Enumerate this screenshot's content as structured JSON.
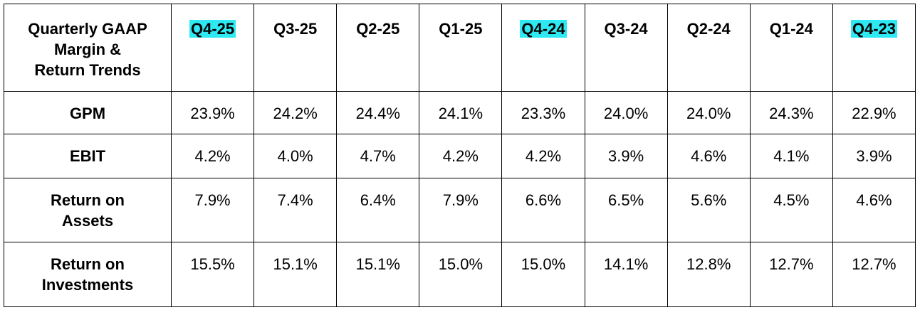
{
  "table": {
    "header": [
      "Quarterly GAAP\nMargin &\nReturn Trends",
      "Q4-25",
      "Q3-25",
      "Q2-25",
      "Q1-25",
      "Q4-24",
      "Q3-24",
      "Q2-24",
      "Q1-24",
      "Q4-23"
    ],
    "rows": [
      [
        "GPM",
        "23.9%",
        "24.2%",
        "24.4%",
        "24.1%",
        "23.3%",
        "24.0%",
        "24.0%",
        "24.3%",
        "22.9%"
      ],
      [
        "EBIT",
        "4.2%",
        "4.0%",
        "4.7%",
        "4.2%",
        "4.2%",
        "3.9%",
        "4.6%",
        "4.1%",
        "3.9%"
      ],
      [
        "Return on\nAssets",
        "7.9%",
        "7.4%",
        "6.4%",
        "7.9%",
        "6.6%",
        "6.5%",
        "5.6%",
        "4.5%",
        "4.6%"
      ],
      [
        "Return on\nInvestments",
        "15.5%",
        "15.1%",
        "15.1%",
        "15.0%",
        "15.0%",
        "14.1%",
        "12.8%",
        "12.7%",
        "12.7%"
      ]
    ]
  }
}
